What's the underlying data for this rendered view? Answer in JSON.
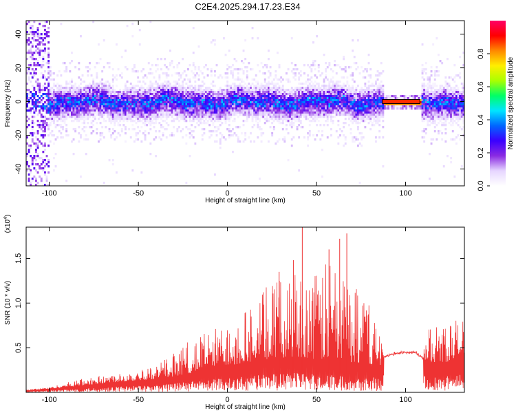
{
  "title": "C2E4.2025.294.17.23.E34",
  "chart_data": [
    {
      "type": "heatmap",
      "xlabel": "Height of straight line (km)",
      "ylabel": "Frequency (Hz)",
      "xlim": [
        -113,
        133
      ],
      "ylim": [
        -50,
        48
      ],
      "xticks": [
        -100,
        -50,
        0,
        50,
        100
      ],
      "yticks": [
        -40,
        -20,
        0,
        20,
        40
      ],
      "grid": false,
      "colorbar": {
        "label": "Normalized spectral amplitude",
        "range": [
          0,
          1
        ],
        "ticks": [
          0.0,
          0.2,
          0.4,
          0.6,
          0.8
        ],
        "colormap": [
          "#ffffff",
          "#e6d6ff",
          "#8a2be2",
          "#3b00ff",
          "#0066ff",
          "#00e5ff",
          "#00ff66",
          "#aaff00",
          "#ffee00",
          "#ff8800",
          "#ff0000",
          "#ff0066"
        ]
      },
      "features": {
        "noise_band_half_width_hz": 10,
        "left_broadband_region_km": [
          -113,
          -100
        ],
        "tone_segment": {
          "x_start": 87,
          "x_end": 108,
          "freq_hz": 0,
          "amplitude": 1.0
        }
      }
    },
    {
      "type": "line",
      "xlabel": "Height of straight line (km)",
      "ylabel": "SNR (10 * v/v)",
      "y_multiplier": "(x10",
      "y_multiplier_exp": "4",
      "xlim": [
        -113,
        133
      ],
      "ylim": [
        0,
        1.85
      ],
      "xticks": [
        -100,
        -50,
        0,
        50,
        100
      ],
      "yticks": [
        0.5,
        1.0,
        1.5
      ],
      "ytick_labels": [
        "0.5",
        "1.0",
        "1.5"
      ],
      "color": "#ee3333",
      "envelope": {
        "x": [
          -113,
          -100,
          -80,
          -60,
          -40,
          -30,
          -20,
          -10,
          0,
          10,
          20,
          30,
          40,
          50,
          60,
          70,
          80,
          86,
          88,
          95,
          105,
          112,
          120,
          133
        ],
        "y_base": [
          0.02,
          0.04,
          0.08,
          0.12,
          0.15,
          0.18,
          0.22,
          0.27,
          0.3,
          0.33,
          0.37,
          0.38,
          0.4,
          0.37,
          0.35,
          0.33,
          0.32,
          0.3,
          0.4,
          0.44,
          0.45,
          0.35,
          0.33,
          0.38
        ],
        "y_peak": [
          0.03,
          0.06,
          0.16,
          0.22,
          0.3,
          0.45,
          0.6,
          0.7,
          0.8,
          0.95,
          1.15,
          1.3,
          1.4,
          1.35,
          1.55,
          1.3,
          1.0,
          0.6,
          0.45,
          0.5,
          0.5,
          0.7,
          0.8,
          0.85
        ]
      },
      "spikes": [
        {
          "x": 42,
          "y": 1.85
        },
        {
          "x": 57,
          "y": 1.6
        },
        {
          "x": 63,
          "y": 1.72
        },
        {
          "x": 67,
          "y": 1.78
        },
        {
          "x": 37,
          "y": 1.48
        },
        {
          "x": 29,
          "y": 1.35
        }
      ]
    }
  ]
}
